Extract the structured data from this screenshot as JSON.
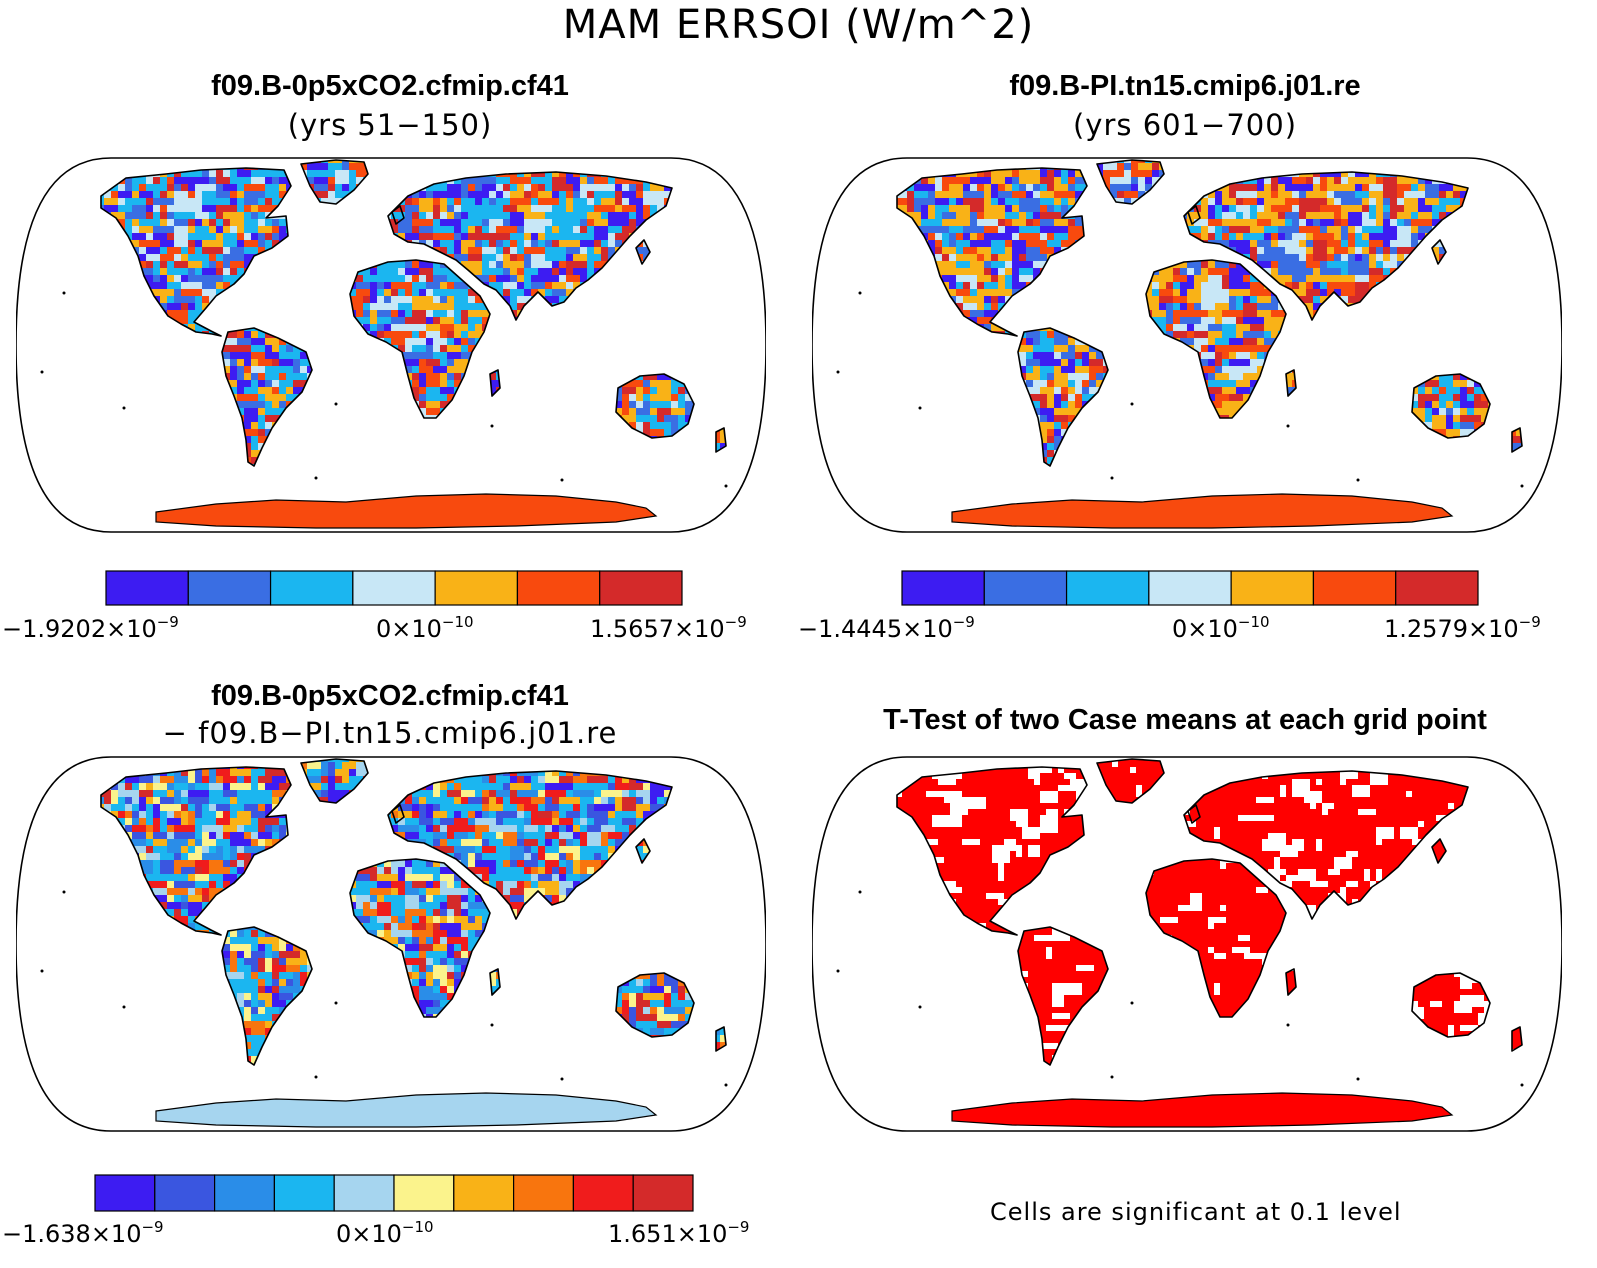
{
  "figure": {
    "main_title": "MAM ERRSOI (W/m^2)"
  },
  "panels": [
    {
      "title": "f09.B-0p5xCO2.cfmip.cf41",
      "subtitle": "(yrs 51−150)",
      "colorbar": {
        "colors": [
          "#3d1cf2",
          "#3a6ee3",
          "#1bb6f0",
          "#c8e7f6",
          "#f9b217",
          "#f84a0e",
          "#d42a2a"
        ],
        "min_label": "−1.9202×10",
        "min_exp": "−9",
        "mid_label": "0×10",
        "mid_exp": "−10",
        "max_label": "1.5657×10",
        "max_exp": "−9"
      },
      "antarctica_color": "#f84a0e"
    },
    {
      "title": "f09.B-PI.tn15.cmip6.j01.re",
      "subtitle": "(yrs 601−700)",
      "colorbar": {
        "colors": [
          "#3d1cf2",
          "#3a6ee3",
          "#1bb6f0",
          "#c8e7f6",
          "#f9b217",
          "#f84a0e",
          "#d42a2a"
        ],
        "min_label": "−1.4445×10",
        "min_exp": "−9",
        "mid_label": "0×10",
        "mid_exp": "−10",
        "max_label": "1.2579×10",
        "max_exp": "−9"
      },
      "antarctica_color": "#f84a0e"
    },
    {
      "title": "f09.B-0p5xCO2.cfmip.cf41",
      "subtitle": "− f09.B−PI.tn15.cmip6.j01.re",
      "colorbar": {
        "colors": [
          "#3d1cf2",
          "#3a56e0",
          "#2a8de8",
          "#1bb6f0",
          "#a6d5ef",
          "#fbf38c",
          "#f9b217",
          "#f8750e",
          "#f01c1c",
          "#d42a2a"
        ],
        "min_label": "−1.638×10",
        "min_exp": "−9",
        "mid_label": "0×10",
        "mid_exp": "−10",
        "max_label": "1.651×10",
        "max_exp": "−9"
      },
      "antarctica_color": "#a6d5ef"
    },
    {
      "title": "T-Test of two Case means at each grid point",
      "significance_color": "#ff0000",
      "footnote": "Cells are significant at 0.1 level"
    }
  ]
}
